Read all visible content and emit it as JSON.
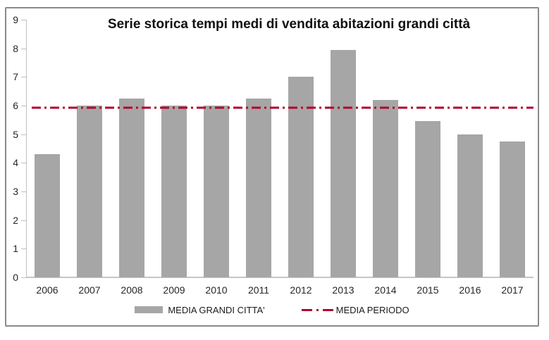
{
  "chart_data": {
    "type": "bar",
    "title": "Serie storica tempi medi di vendita abitazioni grandi città",
    "categories": [
      "2006",
      "2007",
      "2008",
      "2009",
      "2010",
      "2011",
      "2012",
      "2013",
      "2014",
      "2015",
      "2016",
      "2017"
    ],
    "series": [
      {
        "name": "MEDIA GRANDI CITTA'",
        "type": "bar",
        "color": "#A6A6A6",
        "values": [
          4.3,
          6.0,
          6.25,
          6.0,
          6.0,
          6.25,
          7.0,
          7.95,
          6.2,
          5.45,
          5.0,
          4.75
        ]
      },
      {
        "name": "MEDIA PERIODO",
        "type": "line",
        "line_style": "dash-dot",
        "color": "#B2002D",
        "value": 5.93
      }
    ],
    "ylim": [
      0,
      9
    ],
    "yticks": [
      "0",
      "1",
      "2",
      "3",
      "4",
      "5",
      "6",
      "7",
      "8",
      "9"
    ],
    "grid": false,
    "legend_position": "bottom"
  },
  "colors": {
    "bar": "#A6A6A6",
    "line": "#B2002D",
    "axis": "#BFBFBF",
    "baseline": "#C6C6C6",
    "text": "#262626",
    "title": "#111111",
    "frame_border": "#8A8A8A",
    "background": "#FFFFFF"
  }
}
